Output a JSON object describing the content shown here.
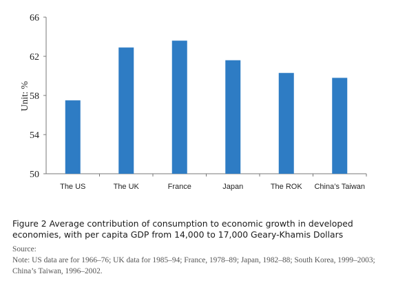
{
  "chart_data": {
    "type": "bar",
    "categories": [
      "The US",
      "The UK",
      "France",
      "Japan",
      "The ROK",
      "China’s Taiwan"
    ],
    "values": [
      57.5,
      62.9,
      63.6,
      61.6,
      60.3,
      59.8
    ],
    "ylabel": "Unit:   %",
    "ylim": [
      50,
      66
    ],
    "yticks": [
      50,
      54,
      58,
      62,
      66
    ],
    "grid": false,
    "legend": "none",
    "bar_color": "#2e7cc4"
  },
  "caption": {
    "figure": "Figure 2 Average contribution of consumption to economic growth in developed economies, with per capita GDP from 14,000 to 17,000 Geary-Khamis Dollars",
    "source": "Source:",
    "note": "Note: US data are for 1966–76; UK data for 1985–94; France, 1978–89; Japan, 1982–88; South Korea, 1999–2003; China’s Taiwan, 1996–2002."
  }
}
